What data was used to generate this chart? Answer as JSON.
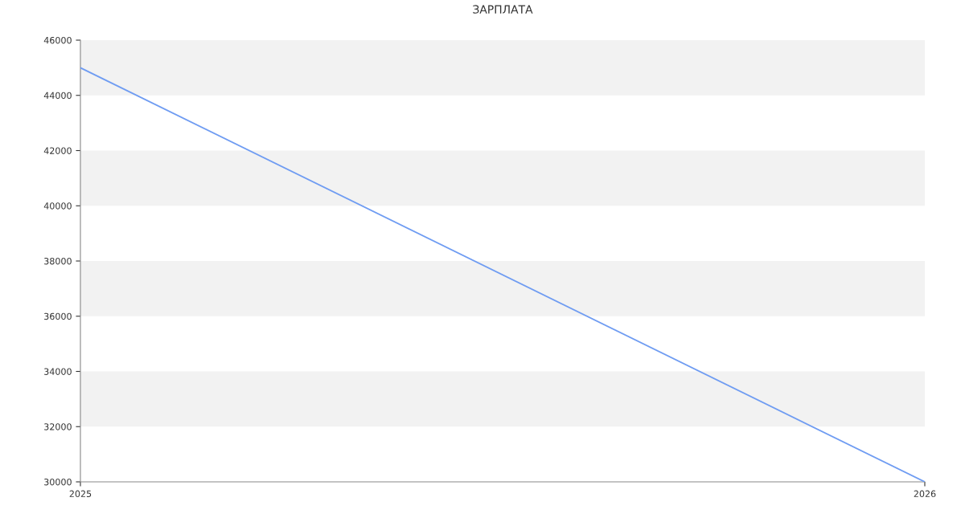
{
  "chart_data": {
    "type": "line",
    "title": "ЗАРПЛАТА",
    "categories": [
      "2025",
      "2026"
    ],
    "series": [
      {
        "color": "#6f9cf2",
        "values": [
          45000,
          30000
        ]
      }
    ],
    "ylim": [
      30000,
      46000
    ],
    "yticks": [
      30000,
      32000,
      34000,
      36000,
      38000,
      40000,
      42000,
      44000,
      46000
    ],
    "bands": [
      {
        "axis": "y",
        "from": 32000,
        "to": 34000,
        "color": "#f2f2f2"
      },
      {
        "axis": "y",
        "from": 36000,
        "to": 38000,
        "color": "#f2f2f2"
      },
      {
        "axis": "y",
        "from": 40000,
        "to": 42000,
        "color": "#f2f2f2"
      },
      {
        "axis": "y",
        "from": 44000,
        "to": 46000,
        "color": "#f2f2f2"
      }
    ],
    "marker": "none",
    "line_style": "solid"
  }
}
